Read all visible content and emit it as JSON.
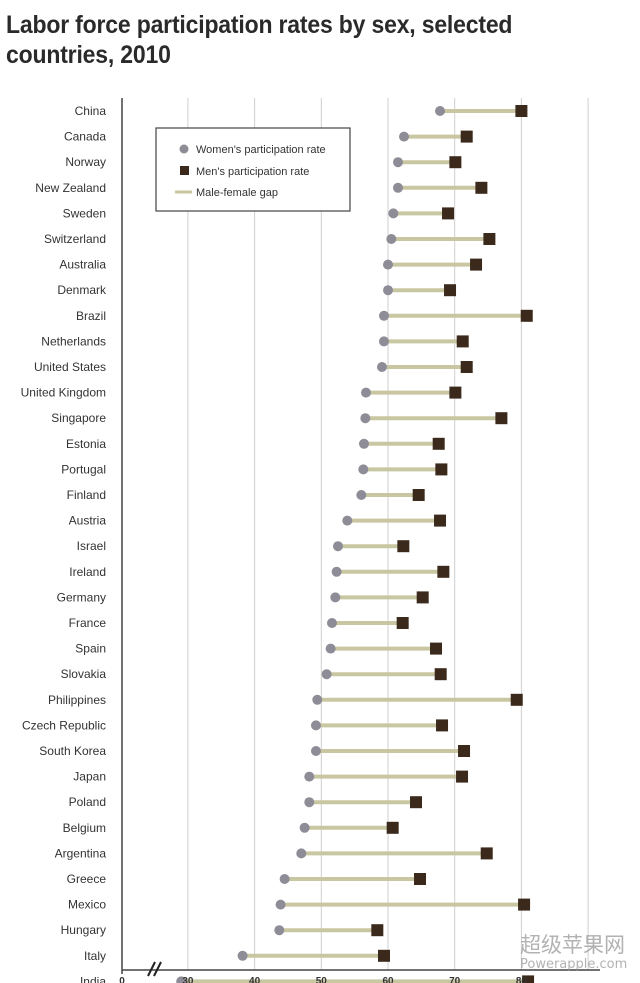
{
  "chart_data": {
    "type": "dumbbell",
    "title": "Labor force participation rates by sex, selected countries, 2010",
    "xlim": [
      0,
      90
    ],
    "axis_break": [
      0,
      30
    ],
    "x_ticks": [
      "0",
      "30",
      "40",
      "50",
      "60",
      "70",
      "80"
    ],
    "grid": true,
    "legend": {
      "placement": "top-left",
      "entries": [
        "Women's participation rate",
        "Men's participation rate",
        "Male-female gap"
      ]
    },
    "colors": {
      "women": "#8e8c96",
      "men": "#3b2a1c",
      "gap": "#c9c6a2"
    },
    "categories": [
      "China",
      "Canada",
      "Norway",
      "New Zealand",
      "Sweden",
      "Switzerland",
      "Australia",
      "Denmark",
      "Brazil",
      "Netherlands",
      "United States",
      "United Kingdom",
      "Singapore",
      "Estonia",
      "Portugal",
      "Finland",
      "Austria",
      "Israel",
      "Ireland",
      "Germany",
      "France",
      "Spain",
      "Slovakia",
      "Philippines",
      "Czech Republic",
      "South Korea",
      "Japan",
      "Poland",
      "Belgium",
      "Argentina",
      "Greece",
      "Mexico",
      "Hungary",
      "Italy",
      "India"
    ],
    "series": [
      {
        "name": "Women's participation rate",
        "values": [
          67.8,
          62.4,
          61.5,
          61.5,
          60.8,
          60.5,
          60.0,
          60.0,
          59.4,
          59.4,
          59.1,
          56.7,
          56.6,
          56.4,
          56.3,
          56.0,
          53.9,
          52.5,
          52.3,
          52.1,
          51.6,
          51.4,
          50.8,
          49.4,
          49.2,
          49.2,
          48.2,
          48.2,
          47.5,
          47.0,
          44.5,
          43.9,
          43.7,
          38.2,
          29.0
        ]
      },
      {
        "name": "Men's participation rate",
        "values": [
          80.0,
          71.8,
          70.1,
          74.0,
          69.0,
          75.2,
          73.2,
          69.3,
          80.8,
          71.2,
          71.8,
          70.1,
          77.0,
          67.6,
          68.0,
          64.6,
          67.8,
          62.3,
          68.3,
          65.2,
          62.2,
          67.2,
          67.9,
          79.3,
          68.1,
          71.4,
          71.1,
          64.2,
          60.7,
          74.8,
          64.8,
          80.4,
          58.4,
          59.4,
          81.0
        ]
      }
    ]
  },
  "watermark": {
    "cn": "超级苹果网",
    "en": "Powerapple.com"
  }
}
